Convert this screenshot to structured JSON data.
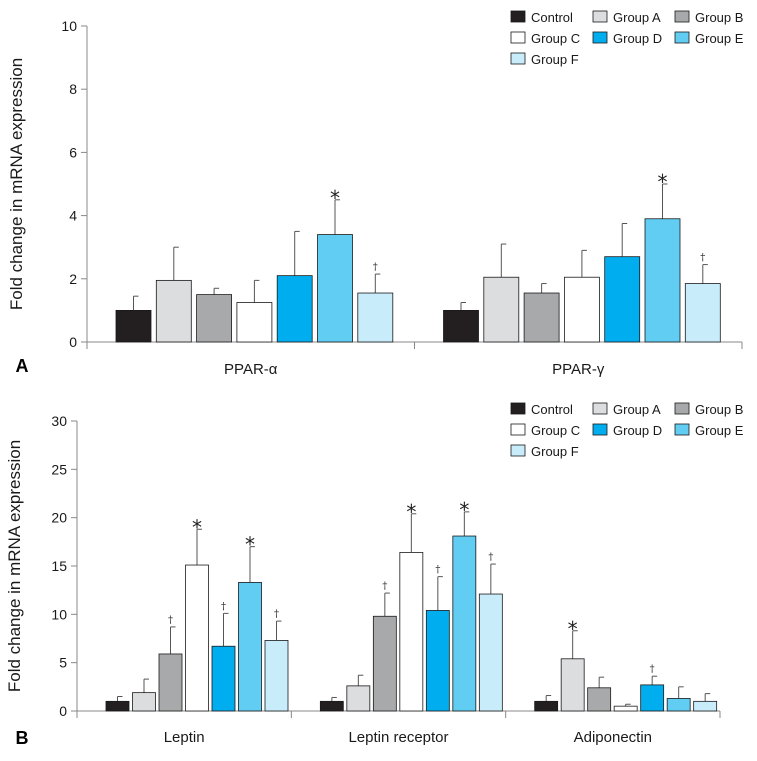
{
  "chart_data": [
    {
      "type": "bar",
      "panel": "A",
      "ylabel": "Fold change in mRNA expression",
      "ylim": [
        0,
        10
      ],
      "yticks": [
        0,
        2,
        4,
        6,
        8,
        10
      ],
      "categories": [
        "PPAR-α",
        "PPAR-γ"
      ],
      "legend_position": "top-right",
      "series": [
        {
          "name": "Control",
          "color": "#231f20",
          "values": [
            1.0,
            1.0
          ],
          "errors": [
            0.45,
            0.25
          ],
          "marks": [
            "",
            ""
          ]
        },
        {
          "name": "Group A",
          "color": "#dcdddf",
          "values": [
            1.95,
            2.05
          ],
          "errors": [
            1.05,
            1.05
          ],
          "marks": [
            "",
            ""
          ]
        },
        {
          "name": "Group B",
          "color": "#a8a9ab",
          "values": [
            1.5,
            1.55
          ],
          "errors": [
            0.2,
            0.3
          ],
          "marks": [
            "",
            ""
          ]
        },
        {
          "name": "Group C",
          "color": "#ffffff",
          "values": [
            1.25,
            2.05
          ],
          "errors": [
            0.7,
            0.85
          ],
          "marks": [
            "",
            ""
          ]
        },
        {
          "name": "Group D",
          "color": "#00aeef",
          "values": [
            2.1,
            2.7
          ],
          "errors": [
            1.4,
            1.05
          ],
          "marks": [
            "",
            ""
          ]
        },
        {
          "name": "Group E",
          "color": "#61cdf3",
          "values": [
            3.4,
            3.9
          ],
          "errors": [
            1.1,
            1.1
          ],
          "marks": [
            "*",
            "*"
          ]
        },
        {
          "name": "Group F",
          "color": "#c9ecfb",
          "values": [
            1.55,
            1.85
          ],
          "errors": [
            0.6,
            0.6
          ],
          "marks": [
            "†",
            "†"
          ]
        }
      ]
    },
    {
      "type": "bar",
      "panel": "B",
      "ylabel": "Fold change in mRNA expression",
      "ylim": [
        0,
        30
      ],
      "yticks": [
        0,
        5,
        10,
        15,
        20,
        25,
        30
      ],
      "categories": [
        "Leptin",
        "Leptin receptor",
        "Adiponectin"
      ],
      "legend_position": "top-right",
      "series": [
        {
          "name": "Control",
          "color": "#231f20",
          "values": [
            1.0,
            1.0,
            1.0
          ],
          "errors": [
            0.5,
            0.4,
            0.6
          ],
          "marks": [
            "",
            "",
            ""
          ]
        },
        {
          "name": "Group A",
          "color": "#dcdddf",
          "values": [
            1.9,
            2.6,
            5.4
          ],
          "errors": [
            1.4,
            1.1,
            2.9
          ],
          "marks": [
            "",
            "",
            "*"
          ]
        },
        {
          "name": "Group B",
          "color": "#a8a9ab",
          "values": [
            5.9,
            9.8,
            2.4
          ],
          "errors": [
            2.8,
            2.4,
            1.1
          ],
          "marks": [
            "†",
            "†",
            ""
          ]
        },
        {
          "name": "Group C",
          "color": "#ffffff",
          "values": [
            15.1,
            16.4,
            0.5
          ],
          "errors": [
            3.7,
            4.0,
            0.2
          ],
          "marks": [
            "*",
            "*",
            ""
          ]
        },
        {
          "name": "Group D",
          "color": "#00aeef",
          "values": [
            6.7,
            10.4,
            2.7
          ],
          "errors": [
            3.4,
            3.5,
            0.9
          ],
          "marks": [
            "†",
            "†",
            "†"
          ]
        },
        {
          "name": "Group E",
          "color": "#61cdf3",
          "values": [
            13.3,
            18.1,
            1.3
          ],
          "errors": [
            3.7,
            2.5,
            1.2
          ],
          "marks": [
            "*",
            "*",
            ""
          ]
        },
        {
          "name": "Group F",
          "color": "#c9ecfb",
          "values": [
            7.3,
            12.1,
            1.0
          ],
          "errors": [
            2.0,
            3.1,
            0.8
          ],
          "marks": [
            "†",
            "†",
            ""
          ]
        }
      ]
    }
  ]
}
